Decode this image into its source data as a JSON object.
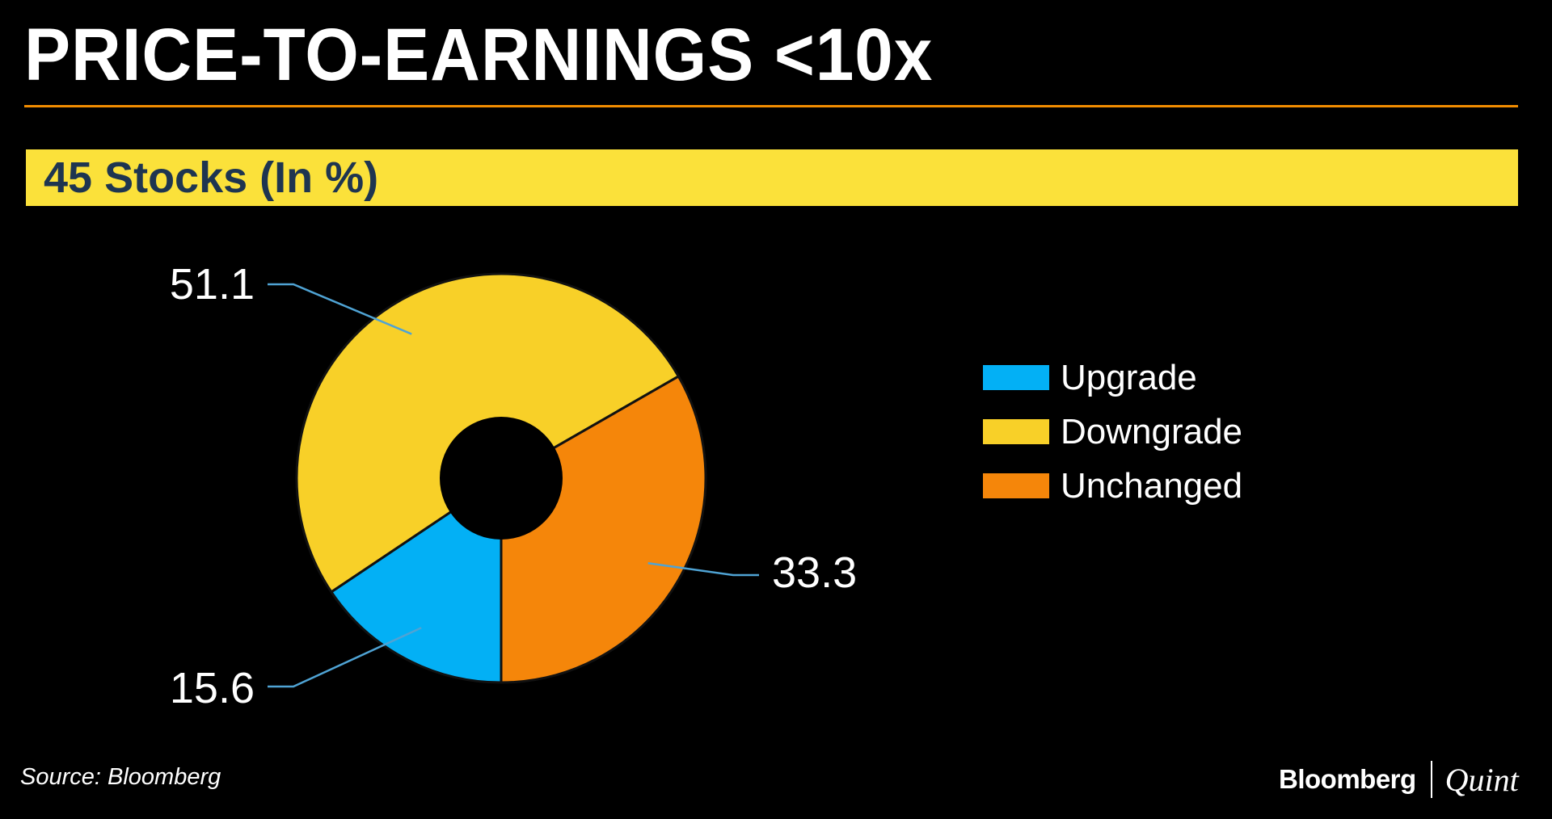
{
  "header": {
    "title": "PRICE-TO-EARNINGS <10x",
    "subtitle": "45 Stocks (In %)"
  },
  "footer": {
    "source": "Source: Bloomberg",
    "brand_main": "Bloomberg",
    "brand_sub": "Quint"
  },
  "colors": {
    "background": "#000000",
    "title_rule": "#f28c00",
    "subtitle_band": "#fbe13a",
    "subtitle_text": "#1e3550",
    "leader_line": "#4fa3d4"
  },
  "chart_data": {
    "type": "pie",
    "variant": "donut",
    "title": "45 Stocks (In %)",
    "unit": "%",
    "categories": [
      "Upgrade",
      "Downgrade",
      "Unchanged"
    ],
    "values": [
      15.6,
      51.1,
      33.3
    ],
    "labels": [
      "15.6",
      "51.1",
      "33.3"
    ],
    "colors": [
      "#03b0f5",
      "#f8d028",
      "#f5860a"
    ],
    "start_angle_deg": 180,
    "direction": "clockwise",
    "legend": {
      "position": "right",
      "entries": [
        "Upgrade",
        "Downgrade",
        "Unchanged"
      ]
    }
  }
}
